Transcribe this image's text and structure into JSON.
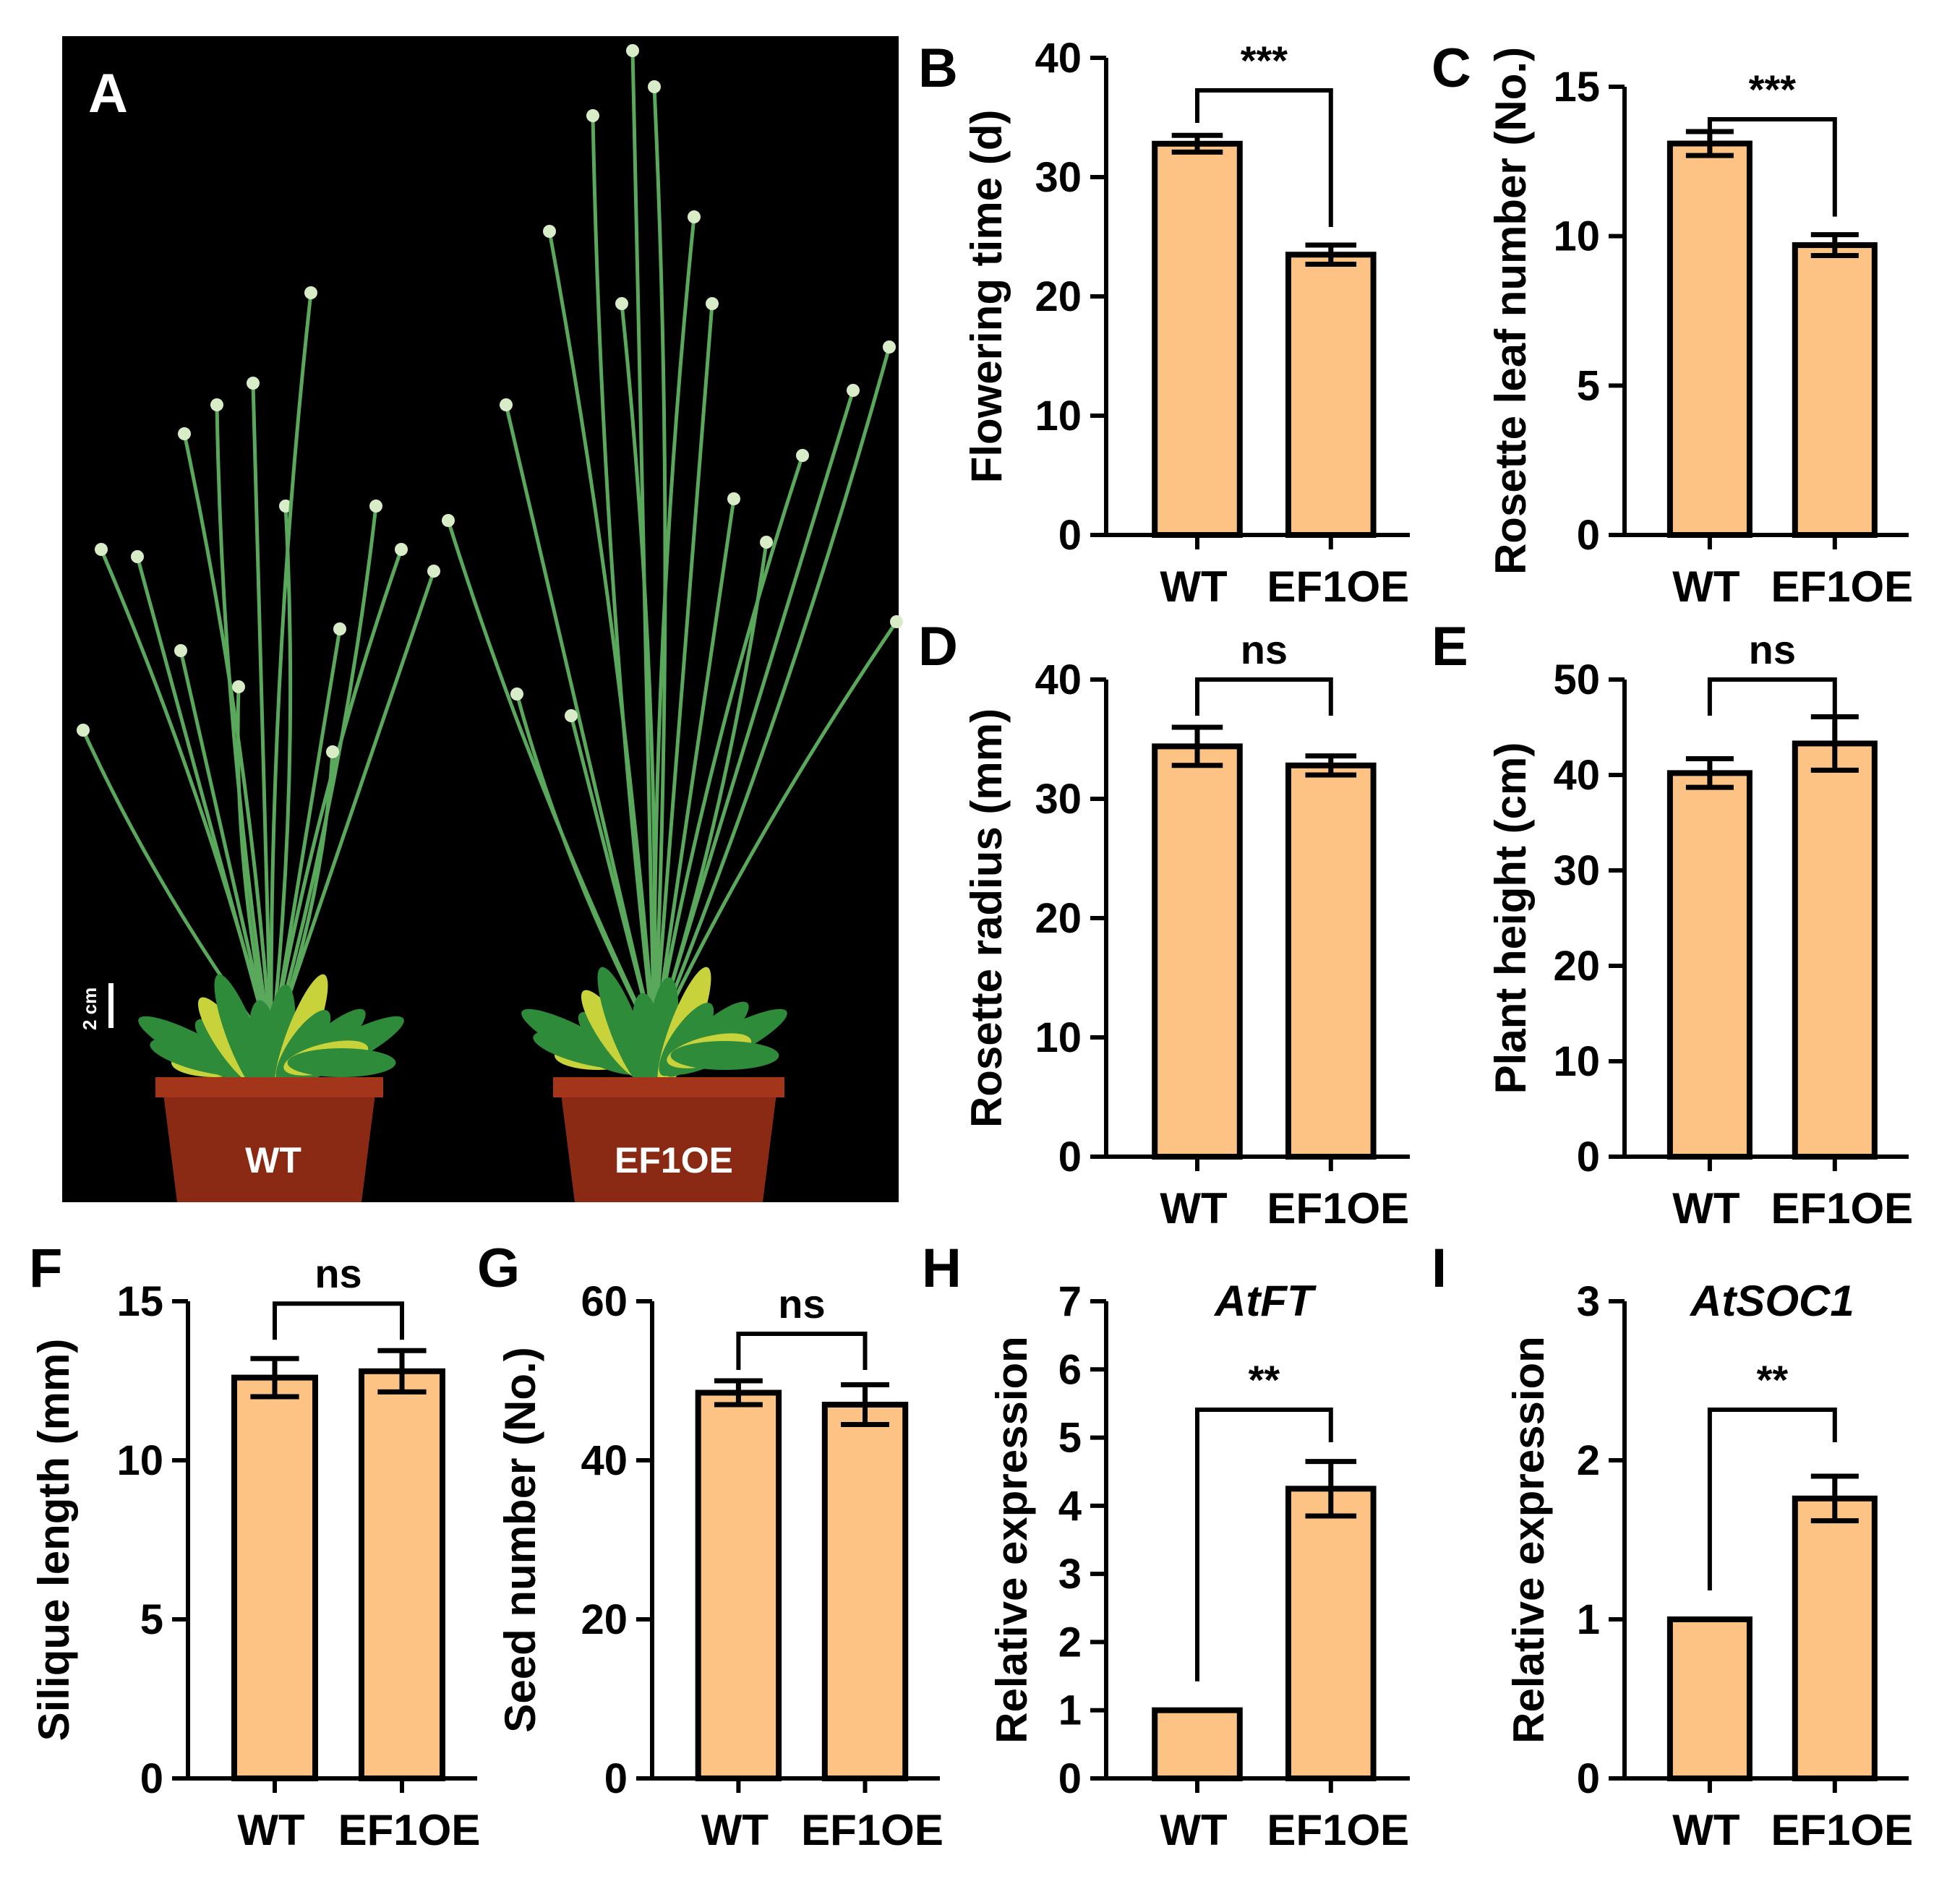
{
  "photo": {
    "panel_label": "A",
    "scale_bar_label": "2 cm",
    "pot_labels": [
      "WT",
      "EF1OE"
    ]
  },
  "colors": {
    "bar_fill": "#fcc384",
    "stroke": "#000000",
    "photo_background": "#000000",
    "pot": "#8a2a14",
    "leaf": "#2e8b3a",
    "stem": "#5aa85c",
    "leaf_yellow": "#c8d23a"
  },
  "chart_data": [
    {
      "panel": "B",
      "type": "bar",
      "categories": [
        "WT",
        "EF1OE"
      ],
      "values": [
        32.8,
        23.5
      ],
      "errors": [
        0.7,
        0.8
      ],
      "ylabel": "Flowering time (d)",
      "gene": "",
      "ylim": [
        0,
        40
      ],
      "yticks": [
        0,
        10,
        20,
        30,
        40
      ],
      "significance": "***"
    },
    {
      "panel": "C",
      "type": "bar",
      "categories": [
        "WT",
        "EF1OE"
      ],
      "values": [
        13.1,
        9.7
      ],
      "errors": [
        0.4,
        0.35
      ],
      "ylabel": "Rosette leaf number (No.)",
      "gene": "",
      "ylim": [
        0,
        15
      ],
      "yticks": [
        0,
        5,
        10,
        15
      ],
      "significance": "***"
    },
    {
      "panel": "D",
      "type": "bar",
      "categories": [
        "WT",
        "EF1OE"
      ],
      "values": [
        34.4,
        32.8
      ],
      "errors": [
        1.6,
        0.8
      ],
      "ylabel": "Rosette radius (mm)",
      "gene": "",
      "ylim": [
        0,
        40
      ],
      "yticks": [
        0,
        10,
        20,
        30,
        40
      ],
      "significance": "ns"
    },
    {
      "panel": "E",
      "type": "bar",
      "categories": [
        "WT",
        "EF1OE"
      ],
      "values": [
        40.2,
        43.3
      ],
      "errors": [
        1.5,
        2.8
      ],
      "ylabel": "Plant height (cm)",
      "gene": "",
      "ylim": [
        0,
        50
      ],
      "yticks": [
        0,
        10,
        20,
        30,
        40,
        50
      ],
      "significance": "ns"
    },
    {
      "panel": "F",
      "type": "bar",
      "categories": [
        "WT",
        "EF1OE"
      ],
      "values": [
        12.6,
        12.8
      ],
      "errors": [
        0.6,
        0.65
      ],
      "ylabel": "Silique length (mm)",
      "gene": "",
      "ylim": [
        0,
        15
      ],
      "yticks": [
        0,
        5,
        10,
        15
      ],
      "significance": "ns"
    },
    {
      "panel": "G",
      "type": "bar",
      "categories": [
        "WT",
        "EF1OE"
      ],
      "values": [
        48.5,
        47.0
      ],
      "errors": [
        1.5,
        2.5
      ],
      "ylabel": "Seed number (No.)",
      "gene": "",
      "ylim": [
        0,
        60
      ],
      "yticks": [
        0,
        20,
        40,
        60
      ],
      "significance": "ns"
    },
    {
      "panel": "H",
      "type": "bar",
      "categories": [
        "WT",
        "EF1OE"
      ],
      "values": [
        1.0,
        4.25
      ],
      "errors": [
        0,
        0.4
      ],
      "ylabel": "Relative expression",
      "gene": "AtFT",
      "ylim": [
        0,
        7
      ],
      "yticks": [
        0,
        1,
        2,
        3,
        4,
        5,
        6,
        7
      ],
      "significance": "**"
    },
    {
      "panel": "I",
      "type": "bar",
      "categories": [
        "WT",
        "EF1OE"
      ],
      "values": [
        1.0,
        1.76
      ],
      "errors": [
        0,
        0.14
      ],
      "ylabel": "Relative expression",
      "gene": "AtSOC1",
      "ylim": [
        0,
        3
      ],
      "yticks": [
        0,
        1,
        2,
        3
      ],
      "significance": "**"
    }
  ]
}
